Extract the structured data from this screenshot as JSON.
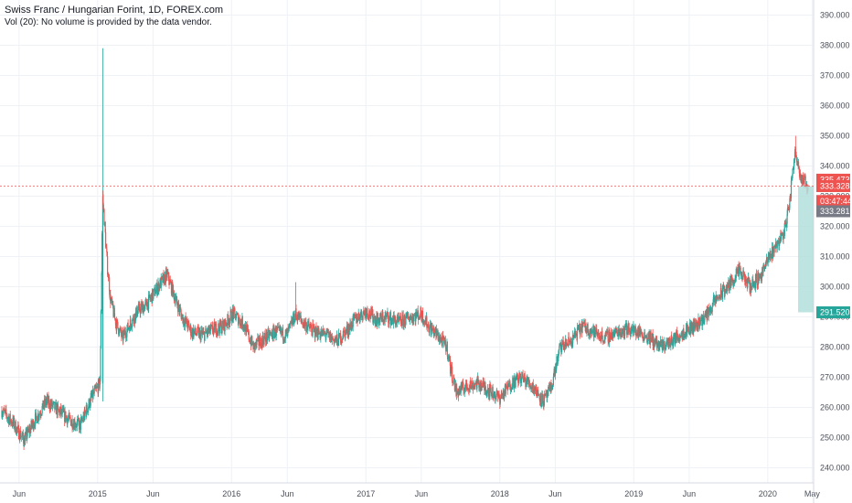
{
  "header": {
    "title": "Swiss Franc / Hungarian Forint, 1D, FOREX.com",
    "volume_note": "Vol (20): No volume is provided by the data vendor."
  },
  "colors": {
    "up": "#26a69a",
    "down": "#ef5350",
    "grid": "#eef1f6",
    "price_line": "#ef5350",
    "projection_fill": "#b2dfdb",
    "target_badge": "#26a69a",
    "last_badge": "#ef5350",
    "bid_badge": "#787b86"
  },
  "chart_data": {
    "type": "candlestick",
    "title": "Swiss Franc / Hungarian Forint, 1D, FOREX.com",
    "xlabel": "",
    "ylabel": "",
    "ylim": [
      235,
      395
    ],
    "x_range": [
      "2014-04-10",
      "2020-05-05"
    ],
    "y_ticks": [
      "240.000",
      "250.000",
      "260.000",
      "270.000",
      "280.000",
      "290.000",
      "300.000",
      "310.000",
      "320.000",
      "330.000",
      "340.000",
      "350.000",
      "360.000",
      "370.000",
      "380.000",
      "390.000"
    ],
    "x_ticks": [
      {
        "label": "Jun",
        "date": "2014-06-01"
      },
      {
        "label": "2015",
        "date": "2015-01-01"
      },
      {
        "label": "Jun",
        "date": "2015-06-01"
      },
      {
        "label": "2016",
        "date": "2016-01-01"
      },
      {
        "label": "Jun",
        "date": "2016-06-01"
      },
      {
        "label": "2017",
        "date": "2017-01-01"
      },
      {
        "label": "Jun",
        "date": "2017-06-01"
      },
      {
        "label": "2018",
        "date": "2018-01-01"
      },
      {
        "label": "Jun",
        "date": "2018-06-01"
      },
      {
        "label": "2019",
        "date": "2019-01-01"
      },
      {
        "label": "Jun",
        "date": "2019-06-01"
      },
      {
        "label": "2020",
        "date": "2020-01-01"
      },
      {
        "label": "May",
        "date": "2020-05-01"
      }
    ],
    "series": [
      {
        "values": [
          [
            "2014-04-15",
            259
          ],
          [
            "2014-05-15",
            255
          ],
          [
            "2014-06-15",
            249
          ],
          [
            "2014-07-15",
            256
          ],
          [
            "2014-08-15",
            262
          ],
          [
            "2014-09-15",
            259
          ],
          [
            "2014-10-15",
            256
          ],
          [
            "2014-11-15",
            254
          ],
          [
            "2014-12-15",
            263
          ],
          [
            "2015-01-08",
            268
          ],
          [
            "2015-01-15",
            330
          ],
          [
            "2015-01-26",
            310
          ],
          [
            "2015-02-05",
            296
          ],
          [
            "2015-02-20",
            288
          ],
          [
            "2015-03-10",
            283
          ],
          [
            "2015-04-01",
            288
          ],
          [
            "2015-04-20",
            292
          ],
          [
            "2015-05-15",
            294
          ],
          [
            "2015-06-15",
            300
          ],
          [
            "2015-07-10",
            304
          ],
          [
            "2015-08-01",
            296
          ],
          [
            "2015-08-20",
            290
          ],
          [
            "2015-09-15",
            285
          ],
          [
            "2015-10-15",
            284
          ],
          [
            "2015-11-15",
            286
          ],
          [
            "2015-12-10",
            287
          ],
          [
            "2016-01-05",
            291
          ],
          [
            "2016-02-01",
            288
          ],
          [
            "2016-03-01",
            280
          ],
          [
            "2016-04-01",
            283
          ],
          [
            "2016-05-01",
            285
          ],
          [
            "2016-06-01",
            284
          ],
          [
            "2016-06-24",
            291
          ],
          [
            "2016-07-15",
            288
          ],
          [
            "2016-08-15",
            285
          ],
          [
            "2016-09-15",
            284
          ],
          [
            "2016-10-15",
            282
          ],
          [
            "2016-11-15",
            286
          ],
          [
            "2016-12-01",
            289
          ],
          [
            "2017-01-01",
            292
          ],
          [
            "2017-02-01",
            289
          ],
          [
            "2017-03-01",
            290
          ],
          [
            "2017-04-01",
            288
          ],
          [
            "2017-05-01",
            290
          ],
          [
            "2017-06-01",
            291
          ],
          [
            "2017-06-20",
            287
          ],
          [
            "2017-07-15",
            284
          ],
          [
            "2017-08-10",
            280
          ],
          [
            "2017-08-20",
            273
          ],
          [
            "2017-09-05",
            265
          ],
          [
            "2017-10-01",
            267
          ],
          [
            "2017-11-01",
            268
          ],
          [
            "2017-12-01",
            266
          ],
          [
            "2018-01-01",
            263
          ],
          [
            "2018-02-01",
            268
          ],
          [
            "2018-03-01",
            270
          ],
          [
            "2018-04-01",
            267
          ],
          [
            "2018-05-01",
            262
          ],
          [
            "2018-05-20",
            266
          ],
          [
            "2018-06-15",
            280
          ],
          [
            "2018-07-15",
            282
          ],
          [
            "2018-08-15",
            287
          ],
          [
            "2018-09-15",
            285
          ],
          [
            "2018-10-15",
            283
          ],
          [
            "2018-11-15",
            285
          ],
          [
            "2018-12-15",
            286
          ],
          [
            "2019-01-15",
            285
          ],
          [
            "2019-02-15",
            283
          ],
          [
            "2019-03-15",
            280
          ],
          [
            "2019-04-15",
            282
          ],
          [
            "2019-05-15",
            285
          ],
          [
            "2019-06-15",
            287
          ],
          [
            "2019-07-15",
            290
          ],
          [
            "2019-08-15",
            296
          ],
          [
            "2019-09-15",
            300
          ],
          [
            "2019-10-15",
            305
          ],
          [
            "2019-11-15",
            300
          ],
          [
            "2019-12-15",
            304
          ],
          [
            "2020-01-15",
            312
          ],
          [
            "2020-02-15",
            318
          ],
          [
            "2020-03-01",
            328
          ],
          [
            "2020-03-15",
            345
          ],
          [
            "2020-03-23",
            342
          ],
          [
            "2020-04-01",
            336
          ],
          [
            "2020-04-15",
            334
          ],
          [
            "2020-04-21",
            333.3
          ]
        ]
      }
    ],
    "annotations": {
      "crossline_price": "333.328",
      "badges": [
        {
          "text": "335.473",
          "price": 335.473,
          "kind": "last"
        },
        {
          "text": "333.328",
          "price": 333.328,
          "kind": "last"
        },
        {
          "text": "03:47:44",
          "price": 328.4,
          "kind": "last"
        },
        {
          "text": "333.281",
          "price": 325.0,
          "kind": "bid"
        },
        {
          "text": "291.520",
          "price": 291.52,
          "kind": "target"
        }
      ],
      "projection": {
        "from": 333.3,
        "to": 291.52
      }
    }
  }
}
